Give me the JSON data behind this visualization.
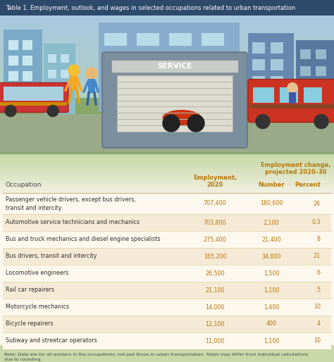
{
  "title": "Table 1. Employment, outlook, and wages in selected occupations related to urban transportation",
  "title_bg": "#2d4a6b",
  "title_color": "#ffffff",
  "table_bg_white": "#ffffff",
  "table_bg_cream": "#f5ead5",
  "outer_bg_top": "#b8cfa0",
  "outer_bg_bottom": "#c8d8a8",
  "header_color": "#b8780a",
  "text_color": "#333333",
  "note_text": "Note: Data are for all workers in the occupations, not just those in urban transportation. Totals may differ from individual calculations\ndue to rounding.\nSource: U.S. Bureau of Labor Statistics, Employment Projections program.",
  "col_header_1": "Occupation",
  "col_header_2": "Employment,\n2020",
  "col_header_3": "Employment change,\nprojected 2020–30",
  "col_subheader_number": "Number",
  "col_subheader_percent": "Percent",
  "rows": [
    {
      "occupation": "Passenger vehicle drivers, except bus drivers,\ntransit and intercity",
      "employment": "707,400",
      "number": "180,600",
      "percent": "26",
      "two_line": true
    },
    {
      "occupation": "Automotive service technicians and mechanics",
      "employment": "703,800",
      "number": "2,100",
      "percent": "0.3",
      "two_line": false
    },
    {
      "occupation": "Bus and truck mechanics and diesel engine specialists",
      "employment": "275,400",
      "number": "21,400",
      "percent": "8",
      "two_line": false
    },
    {
      "occupation": "Bus drivers, transit and intercity",
      "employment": "165,200",
      "number": "34,800",
      "percent": "21",
      "two_line": false
    },
    {
      "occupation": "Locomotive engineers",
      "employment": "26,500",
      "number": "1,500",
      "percent": "6",
      "two_line": false
    },
    {
      "occupation": "Rail car repairers",
      "employment": "21,100",
      "number": "1,100",
      "percent": "5",
      "two_line": false
    },
    {
      "occupation": "Motorcycle mechanics",
      "employment": "14,000",
      "number": "1,400",
      "percent": "10",
      "two_line": false
    },
    {
      "occupation": "Bicycle repairers",
      "employment": "12,100",
      "number": "400",
      "percent": "4",
      "two_line": false
    },
    {
      "occupation": "Subway and streetcar operators",
      "employment": "11,000",
      "number": "1,100",
      "percent": "10",
      "two_line": false
    }
  ],
  "figsize": [
    4.74,
    5.14
  ],
  "dpi": 100
}
